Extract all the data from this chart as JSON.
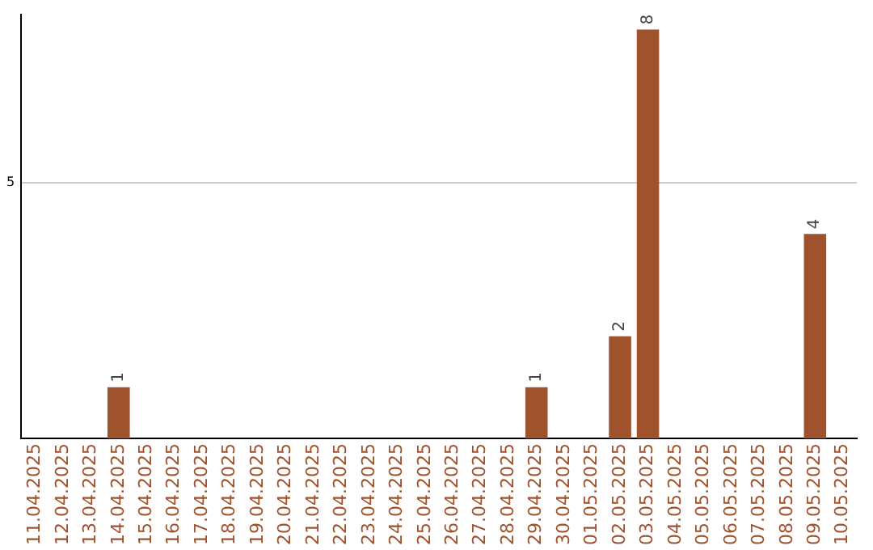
{
  "chart_data": {
    "type": "bar",
    "categories": [
      "11.04.2025",
      "12.04.2025",
      "13.04.2025",
      "14.04.2025",
      "15.04.2025",
      "16.04.2025",
      "17.04.2025",
      "18.04.2025",
      "19.04.2025",
      "20.04.2025",
      "21.04.2025",
      "22.04.2025",
      "23.04.2025",
      "24.04.2025",
      "25.04.2025",
      "26.04.2025",
      "27.04.2025",
      "28.04.2025",
      "29.04.2025",
      "30.04.2025",
      "01.05.2025",
      "02.05.2025",
      "03.05.2025",
      "04.05.2025",
      "05.05.2025",
      "06.05.2025",
      "07.05.2025",
      "08.05.2025",
      "09.05.2025",
      "10.05.2025"
    ],
    "values": [
      0,
      0,
      0,
      1,
      0,
      0,
      0,
      0,
      0,
      0,
      0,
      0,
      0,
      0,
      0,
      0,
      0,
      0,
      1,
      0,
      0,
      2,
      8,
      0,
      0,
      0,
      0,
      0,
      4,
      0
    ],
    "value_labels": [
      null,
      null,
      null,
      "1",
      null,
      null,
      null,
      null,
      null,
      null,
      null,
      null,
      null,
      null,
      null,
      null,
      null,
      null,
      "1",
      null,
      null,
      "2",
      "8",
      null,
      null,
      null,
      null,
      null,
      "4",
      null
    ],
    "color": "#a0522d",
    "ylim": [
      0,
      8.3
    ],
    "yticks": [
      5
    ],
    "grid": "y",
    "legend": false
  }
}
